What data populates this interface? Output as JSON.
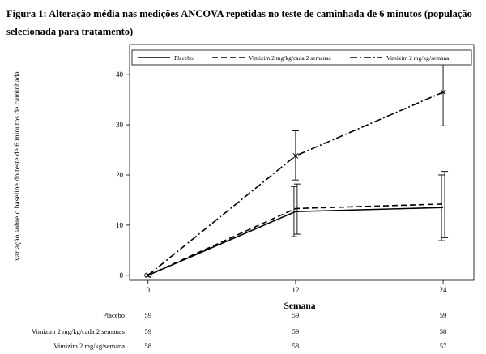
{
  "figure_title": "Figura 1: Alteração média nas medições ANCOVA repetidas no teste de caminhada de 6 minutos (população selecionada para tratamento)",
  "chart_data": {
    "type": "line",
    "x": [
      0,
      12,
      24
    ],
    "xticks": [
      "0",
      "12",
      "24"
    ],
    "yticks": [
      "0",
      "10",
      "20",
      "30",
      "40"
    ],
    "xlim": [
      -1.5,
      26.5
    ],
    "ylim": [
      -1,
      46
    ],
    "xlabel": "Semana",
    "ylabel": "variação sobre o baseline do teste de 6 minutos de caminhada",
    "legend_position": "top",
    "series": [
      {
        "name": "Placebo",
        "line_style": "solid",
        "marker": "",
        "values": [
          0,
          12.7,
          13.5
        ],
        "err_low": [
          0,
          7.7,
          6.9
        ],
        "err_high": [
          0,
          17.7,
          20.0
        ]
      },
      {
        "name": "Vimizim 2 mg/kg/cada 2 semanas",
        "line_style": "dashed",
        "marker": "",
        "values": [
          0,
          13.3,
          14.2
        ],
        "err_low": [
          0,
          8.2,
          7.5
        ],
        "err_high": [
          0,
          18.2,
          20.7
        ]
      },
      {
        "name": "Vimizim 2 mg/kg/semana",
        "line_style": "dashdot",
        "marker": "x",
        "values": [
          0,
          23.8,
          36.5
        ],
        "err_low": [
          0,
          19.0,
          29.8
        ],
        "err_high": [
          0,
          28.8,
          43.0
        ]
      }
    ],
    "n_table": [
      {
        "label": "Placebo",
        "values": [
          "59",
          "59",
          "59"
        ]
      },
      {
        "label": "Vimizim 2 mg/kg/cada 2 semanas",
        "values": [
          "59",
          "59",
          "58"
        ]
      },
      {
        "label": "Vimizim 2 mg/kg/semana",
        "values": [
          "58",
          "58",
          "57"
        ]
      }
    ]
  }
}
